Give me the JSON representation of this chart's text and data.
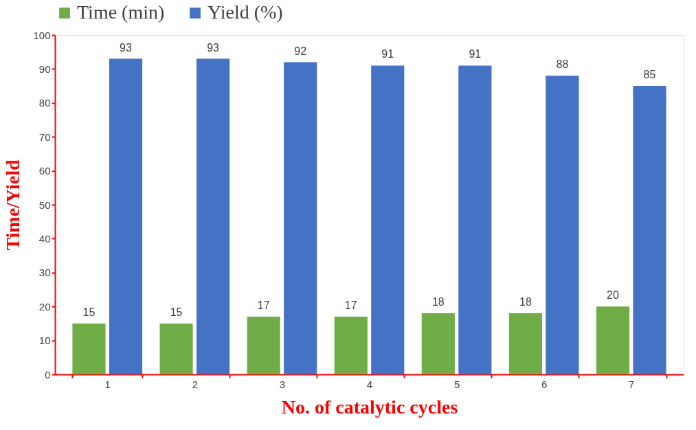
{
  "chart_data": {
    "type": "bar",
    "xlabel": "No. of catalytic cycles",
    "ylabel": "Time/Yield",
    "categories": [
      "1",
      "2",
      "3",
      "4",
      "5",
      "6",
      "7"
    ],
    "series": [
      {
        "name": "Time (min)",
        "color": "#70ad47",
        "values": [
          15,
          15,
          17,
          17,
          18,
          18,
          20
        ]
      },
      {
        "name": "Yield (%)",
        "color": "#4472c4",
        "values": [
          93,
          93,
          92,
          91,
          91,
          88,
          85
        ]
      }
    ],
    "ylim": [
      0,
      100
    ],
    "yticks": [
      0,
      10,
      20,
      30,
      40,
      50,
      60,
      70,
      80,
      90,
      100
    ],
    "data_labels": true,
    "grid": false,
    "legend": "top"
  }
}
